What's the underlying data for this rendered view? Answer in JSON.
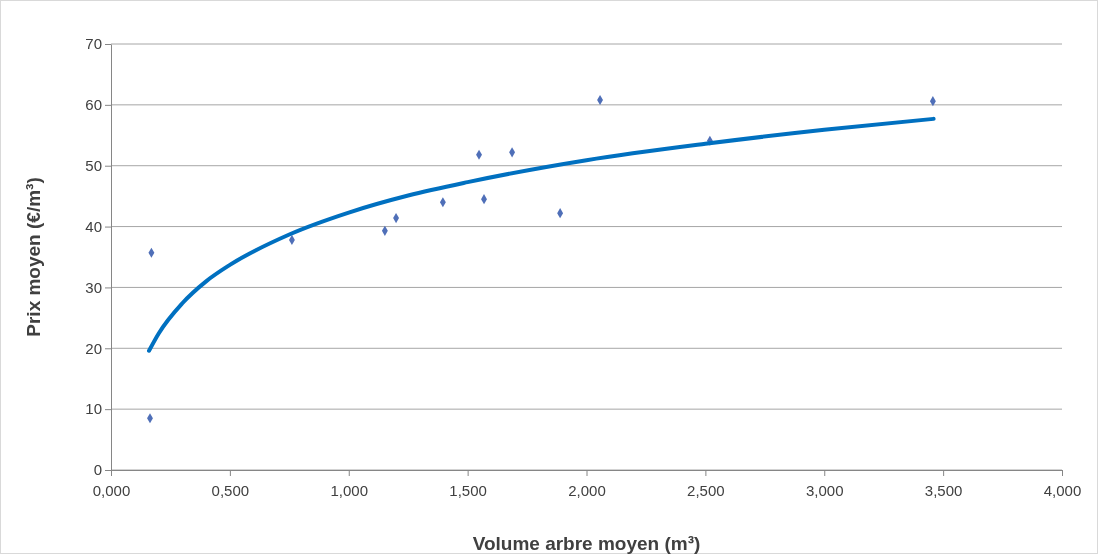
{
  "chart_data": {
    "type": "scatter",
    "xlabel": "Volume arbre moyen (m³)",
    "ylabel": "Prix moyen (€/m³)",
    "xlim": [
      0,
      4
    ],
    "xticks": [
      {
        "value": 0,
        "label": "0,000"
      },
      {
        "value": 0.5,
        "label": "0,500"
      },
      {
        "value": 1,
        "label": "1,000"
      },
      {
        "value": 1.5,
        "label": "1,500"
      },
      {
        "value": 2,
        "label": "2,000"
      },
      {
        "value": 2.5,
        "label": "2,500"
      },
      {
        "value": 3,
        "label": "3,000"
      },
      {
        "value": 3.5,
        "label": "3,500"
      },
      {
        "value": 4,
        "label": "4,000"
      }
    ],
    "ylim": [
      0,
      70
    ],
    "yticks": [
      0,
      10,
      20,
      30,
      40,
      50,
      60,
      70
    ],
    "grid": "y",
    "series": [
      {
        "marker": "diamond",
        "color": "#4f6fb8",
        "x": [
          0.164,
          0.17,
          0.761,
          1.152,
          1.199,
          1.396,
          1.548,
          1.569,
          1.687,
          1.889,
          2.057,
          2.519,
          3.457
        ],
        "values": [
          8.5,
          35.7,
          37.8,
          39.3,
          41.4,
          44.0,
          51.8,
          44.5,
          52.2,
          42.2,
          60.8,
          54.1,
          60.6
        ]
      },
      {
        "type": "line",
        "marker": "none",
        "line_style": "solid",
        "color": "#0070c0",
        "x": [
          0.16,
          0.2,
          0.3,
          0.4,
          0.5,
          0.75,
          1,
          1.25,
          1.5,
          2,
          2.5,
          3,
          3.46
        ],
        "values": [
          19.6,
          22.4,
          27.4,
          31.0,
          33.7,
          38.7,
          42.3,
          45.1,
          47.3,
          50.9,
          53.6,
          55.9,
          57.7
        ]
      }
    ]
  }
}
